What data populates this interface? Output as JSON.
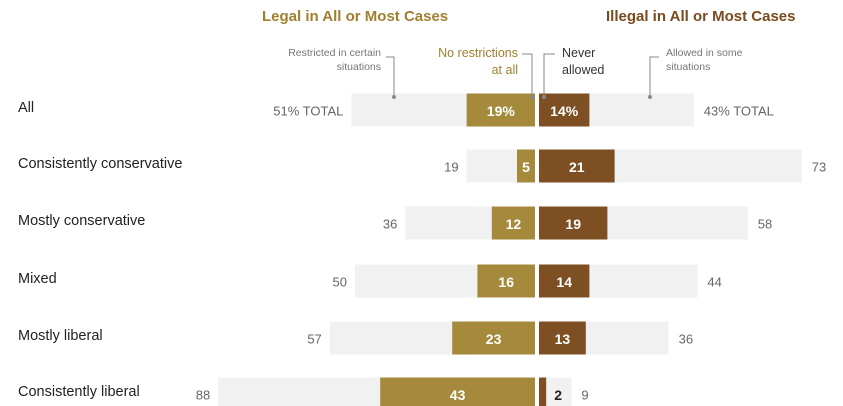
{
  "headers": {
    "legal": "Legal in All or Most Cases",
    "illegal": "Illegal in All or Most Cases"
  },
  "annotations": {
    "restricted": [
      "Restricted in certain",
      "situations"
    ],
    "no_restrictions": [
      "No restrictions",
      "at all"
    ],
    "never": [
      "Never",
      "allowed"
    ],
    "allowed_some": [
      "Allowed in some",
      "situations"
    ]
  },
  "colors": {
    "legal_text": "#a0802f",
    "illegal_text": "#7a4a1e",
    "legal_bar": "#a68a3c",
    "illegal_bar": "#7d4f22",
    "total_bar": "#f1f1f1",
    "label": "#222222",
    "value": "#666666"
  },
  "chart_data": {
    "type": "bar",
    "orientation": "horizontal-diverging",
    "categories": [
      "All",
      "Consistently conservative",
      "Mostly conservative",
      "Mixed",
      "Mostly liberal",
      "Consistently liberal"
    ],
    "series": [
      {
        "name": "No restrictions at all",
        "side": "legal",
        "values": [
          19,
          5,
          12,
          16,
          23,
          43
        ],
        "labels": [
          "19%",
          "5",
          "12",
          "16",
          "23",
          "43"
        ]
      },
      {
        "name": "Never allowed",
        "side": "illegal",
        "values": [
          14,
          21,
          19,
          14,
          13,
          2
        ],
        "labels": [
          "14%",
          "21",
          "19",
          "14",
          "13",
          "2"
        ]
      }
    ],
    "totals_legal": [
      51,
      19,
      36,
      50,
      57,
      88
    ],
    "totals_legal_labels": [
      "51% TOTAL",
      "19",
      "36",
      "50",
      "57",
      "88"
    ],
    "totals_illegal": [
      43,
      73,
      58,
      44,
      36,
      9
    ],
    "totals_illegal_labels": [
      "43% TOTAL",
      "73",
      "58",
      "44",
      "36",
      "9"
    ]
  }
}
